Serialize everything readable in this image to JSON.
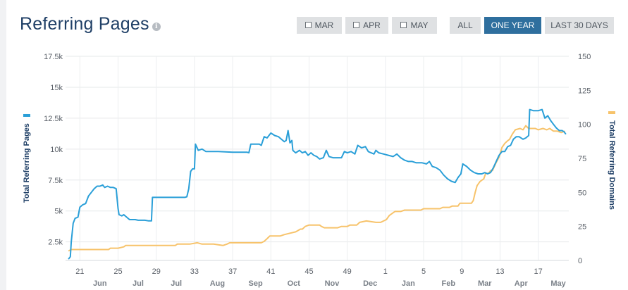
{
  "header": {
    "title": "Referring Pages",
    "info_icon": "info-icon"
  },
  "controls": {
    "month_toggles": [
      {
        "label": "MAR",
        "checked": false
      },
      {
        "label": "APR",
        "checked": false
      },
      {
        "label": "MAY",
        "checked": false
      }
    ],
    "ranges": [
      {
        "label": "ALL",
        "active": false
      },
      {
        "label": "ONE YEAR",
        "active": true
      },
      {
        "label": "LAST 30 DAYS",
        "active": false
      }
    ]
  },
  "colors": {
    "pages_series": "#2a9fd8",
    "domains_series": "#f7c36b",
    "active_button": "#2f6f9e",
    "button": "#dfe1e3",
    "title": "#1f3f66"
  },
  "chart_data": {
    "type": "line",
    "grid": true,
    "x_tick_labels": [
      "21",
      "25",
      "29",
      "33",
      "37",
      "41",
      "45",
      "49",
      "1",
      "5",
      "9",
      "13",
      "17"
    ],
    "x_tick_weeks": [
      21,
      25,
      29,
      33,
      37,
      41,
      45,
      49,
      53,
      57,
      61,
      65,
      69
    ],
    "month_labels": [
      "Jun",
      "Jul",
      "Jul",
      "Aug",
      "Sep",
      "Oct",
      "Nov",
      "Dec",
      "Jan",
      "Feb",
      "Mar",
      "Apr",
      "May"
    ],
    "month_label_weeks": [
      23.1,
      27.1,
      31.1,
      35.4,
      39.4,
      43.4,
      47.4,
      51.4,
      55.4,
      59.6,
      63.4,
      67.2,
      71.1
    ],
    "xlim": [
      19.5,
      72.2
    ],
    "y_left": {
      "label": "Total Referring Pages",
      "lim": [
        1000,
        17500
      ],
      "ticks": [
        2500,
        5000,
        7500,
        10000,
        12500,
        15000,
        17500
      ],
      "tick_labels": [
        "2.5k",
        "5k",
        "7.5k",
        "10k",
        "12.5k",
        "15k",
        "17.5k"
      ]
    },
    "y_right": {
      "label": "Total Referring Domains",
      "lim": [
        0,
        150
      ],
      "ticks": [
        0,
        25,
        50,
        75,
        100,
        125,
        150
      ],
      "tick_labels": [
        "0",
        "25",
        "50",
        "75",
        "100",
        "125",
        "150"
      ]
    },
    "series": [
      {
        "name": "Total Referring Pages",
        "axis": "left",
        "points": [
          [
            19.8,
            1100
          ],
          [
            20.0,
            1300
          ],
          [
            20.1,
            2500
          ],
          [
            20.3,
            4000
          ],
          [
            20.5,
            4400
          ],
          [
            20.8,
            4500
          ],
          [
            21.0,
            5300
          ],
          [
            21.3,
            5500
          ],
          [
            21.6,
            5600
          ],
          [
            21.9,
            6200
          ],
          [
            22.2,
            6500
          ],
          [
            22.5,
            6800
          ],
          [
            22.8,
            7000
          ],
          [
            23.1,
            7000
          ],
          [
            23.4,
            7100
          ],
          [
            23.6,
            6900
          ],
          [
            23.9,
            7000
          ],
          [
            24.2,
            6900
          ],
          [
            24.5,
            6900
          ],
          [
            24.8,
            6800
          ],
          [
            25.0,
            5200
          ],
          [
            25.1,
            4700
          ],
          [
            25.4,
            4600
          ],
          [
            25.6,
            4700
          ],
          [
            25.9,
            4500
          ],
          [
            26.2,
            4300
          ],
          [
            26.5,
            4300
          ],
          [
            26.8,
            4300
          ],
          [
            27.1,
            4250
          ],
          [
            27.4,
            4250
          ],
          [
            27.8,
            4250
          ],
          [
            28.2,
            4200
          ],
          [
            28.5,
            4200
          ],
          [
            28.6,
            6100
          ],
          [
            29.0,
            6100
          ],
          [
            30.5,
            6100
          ],
          [
            32.0,
            6100
          ],
          [
            32.2,
            6150
          ],
          [
            32.4,
            6800
          ],
          [
            32.6,
            8200
          ],
          [
            32.7,
            8300
          ],
          [
            32.8,
            8400
          ],
          [
            33.0,
            8400
          ],
          [
            33.1,
            10400
          ],
          [
            33.4,
            9900
          ],
          [
            33.8,
            10000
          ],
          [
            34.2,
            9800
          ],
          [
            35.5,
            9800
          ],
          [
            37.0,
            9750
          ],
          [
            38.5,
            9750
          ],
          [
            38.7,
            9700
          ],
          [
            38.9,
            10400
          ],
          [
            39.2,
            10400
          ],
          [
            39.8,
            10400
          ],
          [
            40.0,
            10300
          ],
          [
            40.3,
            11000
          ],
          [
            40.6,
            10900
          ],
          [
            41.0,
            11300
          ],
          [
            41.4,
            11100
          ],
          [
            41.8,
            11000
          ],
          [
            42.1,
            10800
          ],
          [
            42.4,
            10600
          ],
          [
            42.6,
            10700
          ],
          [
            42.8,
            11500
          ],
          [
            43.0,
            10500
          ],
          [
            43.2,
            10700
          ],
          [
            43.3,
            9900
          ],
          [
            43.6,
            9700
          ],
          [
            44.0,
            9900
          ],
          [
            44.3,
            9700
          ],
          [
            44.6,
            9800
          ],
          [
            44.9,
            9500
          ],
          [
            45.2,
            9700
          ],
          [
            45.5,
            9500
          ],
          [
            45.8,
            9400
          ],
          [
            46.1,
            9200
          ],
          [
            46.5,
            9300
          ],
          [
            46.8,
            9900
          ],
          [
            47.1,
            9400
          ],
          [
            47.5,
            9300
          ],
          [
            47.9,
            9300
          ],
          [
            48.4,
            9300
          ],
          [
            48.7,
            9800
          ],
          [
            49.0,
            9700
          ],
          [
            49.4,
            9800
          ],
          [
            49.8,
            9600
          ],
          [
            50.1,
            10300
          ],
          [
            50.5,
            10100
          ],
          [
            50.9,
            10200
          ],
          [
            51.2,
            9800
          ],
          [
            51.5,
            9700
          ],
          [
            51.8,
            9600
          ],
          [
            52.0,
            9900
          ],
          [
            52.3,
            9700
          ],
          [
            52.8,
            9600
          ],
          [
            53.3,
            9500
          ],
          [
            53.8,
            9400
          ],
          [
            54.2,
            9600
          ],
          [
            54.6,
            9300
          ],
          [
            55.0,
            9100
          ],
          [
            55.4,
            9000
          ],
          [
            55.8,
            9000
          ],
          [
            56.2,
            8900
          ],
          [
            56.8,
            8900
          ],
          [
            57.3,
            8800
          ],
          [
            57.6,
            9000
          ],
          [
            57.9,
            8600
          ],
          [
            58.3,
            8500
          ],
          [
            58.7,
            8300
          ],
          [
            59.1,
            7900
          ],
          [
            59.5,
            7600
          ],
          [
            59.9,
            7400
          ],
          [
            60.3,
            7300
          ],
          [
            60.6,
            7700
          ],
          [
            60.9,
            8000
          ],
          [
            61.1,
            8800
          ],
          [
            61.5,
            8600
          ],
          [
            61.9,
            8300
          ],
          [
            62.3,
            8100
          ],
          [
            62.7,
            8000
          ],
          [
            63.1,
            8000
          ],
          [
            63.4,
            8100
          ],
          [
            63.7,
            8000
          ],
          [
            64.0,
            8100
          ],
          [
            64.3,
            8500
          ],
          [
            64.6,
            9000
          ],
          [
            64.9,
            9500
          ],
          [
            65.2,
            9800
          ],
          [
            65.5,
            9800
          ],
          [
            65.8,
            10200
          ],
          [
            66.1,
            10300
          ],
          [
            66.4,
            10800
          ],
          [
            66.7,
            11000
          ],
          [
            67.0,
            11000
          ],
          [
            67.4,
            10800
          ],
          [
            67.7,
            10900
          ],
          [
            68.0,
            11100
          ],
          [
            68.1,
            13200
          ],
          [
            68.5,
            13100
          ],
          [
            69.0,
            13100
          ],
          [
            69.4,
            13200
          ],
          [
            69.7,
            12500
          ],
          [
            70.0,
            12700
          ],
          [
            70.3,
            12300
          ],
          [
            70.6,
            12000
          ],
          [
            70.9,
            11700
          ],
          [
            71.2,
            11500
          ],
          [
            71.5,
            11500
          ],
          [
            71.7,
            11400
          ],
          [
            71.9,
            11200
          ]
        ]
      },
      {
        "name": "Total Referring Domains",
        "axis": "right",
        "points": [
          [
            19.8,
            7
          ],
          [
            20.1,
            8
          ],
          [
            21.0,
            8
          ],
          [
            22.5,
            8
          ],
          [
            24.0,
            8
          ],
          [
            24.2,
            9
          ],
          [
            25.0,
            9
          ],
          [
            25.6,
            10
          ],
          [
            25.8,
            11
          ],
          [
            27.0,
            11
          ],
          [
            29.0,
            11
          ],
          [
            31.0,
            11
          ],
          [
            31.2,
            12
          ],
          [
            32.5,
            12
          ],
          [
            33.3,
            13
          ],
          [
            33.8,
            12
          ],
          [
            35.0,
            12
          ],
          [
            36.0,
            11
          ],
          [
            36.4,
            12
          ],
          [
            36.7,
            13
          ],
          [
            38.0,
            13
          ],
          [
            40.0,
            13
          ],
          [
            40.3,
            14
          ],
          [
            40.6,
            16
          ],
          [
            40.9,
            18
          ],
          [
            41.3,
            18
          ],
          [
            42.0,
            18
          ],
          [
            42.4,
            19
          ],
          [
            43.0,
            20
          ],
          [
            43.6,
            21
          ],
          [
            44.1,
            23
          ],
          [
            44.3,
            23
          ],
          [
            44.6,
            25
          ],
          [
            45.0,
            26
          ],
          [
            45.6,
            26
          ],
          [
            46.1,
            26
          ],
          [
            46.3,
            25
          ],
          [
            46.6,
            24
          ],
          [
            47.0,
            24
          ],
          [
            48.0,
            24
          ],
          [
            48.4,
            25
          ],
          [
            49.0,
            25
          ],
          [
            49.3,
            26
          ],
          [
            50.0,
            26
          ],
          [
            50.3,
            28
          ],
          [
            51.0,
            29
          ],
          [
            52.0,
            28
          ],
          [
            52.5,
            28
          ],
          [
            52.8,
            29
          ],
          [
            53.1,
            30
          ],
          [
            53.4,
            33
          ],
          [
            53.8,
            35
          ],
          [
            54.0,
            36
          ],
          [
            54.6,
            36
          ],
          [
            55.0,
            37
          ],
          [
            56.0,
            37
          ],
          [
            56.7,
            37
          ],
          [
            57.0,
            38
          ],
          [
            58.0,
            38
          ],
          [
            58.7,
            38
          ],
          [
            59.0,
            39
          ],
          [
            59.7,
            39
          ],
          [
            60.0,
            40
          ],
          [
            60.6,
            40
          ],
          [
            60.8,
            42
          ],
          [
            61.6,
            42
          ],
          [
            62.0,
            42
          ],
          [
            62.2,
            44
          ],
          [
            62.4,
            50
          ],
          [
            62.6,
            55
          ],
          [
            62.9,
            58
          ],
          [
            63.3,
            60
          ],
          [
            63.5,
            64
          ],
          [
            63.8,
            64
          ],
          [
            64.0,
            66
          ],
          [
            64.2,
            66
          ],
          [
            64.6,
            72
          ],
          [
            64.9,
            76
          ],
          [
            65.2,
            83
          ],
          [
            65.5,
            86
          ],
          [
            65.8,
            88
          ],
          [
            66.0,
            89
          ],
          [
            66.3,
            93
          ],
          [
            66.6,
            96
          ],
          [
            67.1,
            97
          ],
          [
            67.4,
            96
          ],
          [
            67.7,
            99
          ],
          [
            68.0,
            97
          ],
          [
            68.3,
            97
          ],
          [
            68.7,
            97
          ],
          [
            69.0,
            96
          ],
          [
            69.5,
            97
          ],
          [
            69.9,
            96
          ],
          [
            70.2,
            97
          ],
          [
            70.6,
            95
          ],
          [
            71.0,
            95
          ],
          [
            71.4,
            94
          ],
          [
            71.8,
            95
          ]
        ]
      }
    ]
  }
}
